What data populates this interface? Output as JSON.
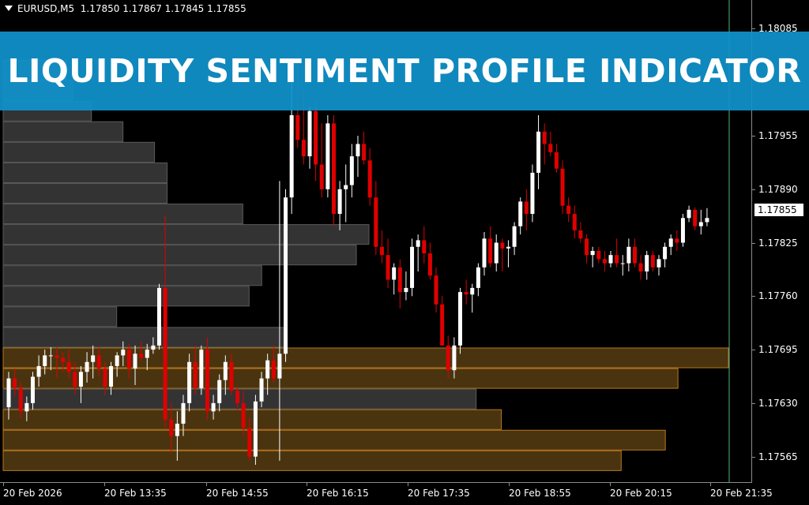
{
  "chart": {
    "symbol_label": "EURUSD,M5",
    "ohlc_label": "1.17850 1.17867 1.17845 1.17855",
    "current_price_label": "1.17855",
    "banner_title": "LIQUIDITY SENTIMENT PROFILE INDICATOR",
    "colors": {
      "background": "#000000",
      "bull_candle": "#ffffff",
      "bear_candle": "#e00000",
      "profile_neutral": "#333333",
      "profile_highlight": "#4a3410",
      "profile_highlight_border": "#b8771e",
      "banner": "#1092cb"
    },
    "price_axis_labels": [
      "1.18085",
      "1.17955",
      "1.17890",
      "1.17825",
      "1.17760",
      "1.17695",
      "1.17630",
      "1.17565"
    ],
    "time_axis_labels": [
      "20 Feb 2026",
      "20 Feb 13:35",
      "20 Feb 14:55",
      "20 Feb 16:15",
      "20 Feb 17:35",
      "20 Feb 18:55",
      "20 Feb 20:15",
      "20 Feb 21:35"
    ]
  },
  "chart_data": {
    "type": "candlestick-with-volume-profile",
    "symbol": "EURUSD",
    "timeframe": "M5",
    "y_range": [
      1.17533,
      1.1812
    ],
    "x_range": [
      "20 Feb 2026 12:00",
      "20 Feb 2026 21:50"
    ],
    "current_price": 1.17855,
    "last_bar_ohlc": {
      "open": 1.1785,
      "high": 1.17867,
      "low": 1.17845,
      "close": 1.17855
    },
    "candles": [
      [
        1.17625,
        1.17668,
        1.1761,
        1.1766
      ],
      [
        1.1766,
        1.17672,
        1.17638,
        1.17648
      ],
      [
        1.17648,
        1.17655,
        1.17612,
        1.1762
      ],
      [
        1.1762,
        1.17638,
        1.17608,
        1.1763
      ],
      [
        1.1763,
        1.17668,
        1.17622,
        1.17662
      ],
      [
        1.17662,
        1.17688,
        1.1765,
        1.17675
      ],
      [
        1.17675,
        1.17695,
        1.17665,
        1.17688
      ],
      [
        1.17688,
        1.17698,
        1.1767,
        1.17688
      ],
      [
        1.17688,
        1.17698,
        1.1766,
        1.17685
      ],
      [
        1.17685,
        1.17692,
        1.17668,
        1.1768
      ],
      [
        1.1768,
        1.17695,
        1.1766,
        1.17668
      ],
      [
        1.17668,
        1.1768,
        1.1764,
        1.1765
      ],
      [
        1.1765,
        1.17675,
        1.1763,
        1.17668
      ],
      [
        1.17668,
        1.17692,
        1.17655,
        1.1768
      ],
      [
        1.1768,
        1.177,
        1.1766,
        1.17688
      ],
      [
        1.17688,
        1.17698,
        1.17662,
        1.17672
      ],
      [
        1.17672,
        1.1768,
        1.1764,
        1.1765
      ],
      [
        1.1765,
        1.1768,
        1.1764,
        1.17675
      ],
      [
        1.17675,
        1.17692,
        1.17662,
        1.17688
      ],
      [
        1.17688,
        1.17705,
        1.17675,
        1.17695
      ],
      [
        1.17695,
        1.17702,
        1.1766,
        1.17672
      ],
      [
        1.17672,
        1.177,
        1.17652,
        1.1769
      ],
      [
        1.1769,
        1.17705,
        1.1768,
        1.17685
      ],
      [
        1.17685,
        1.17702,
        1.1767,
        1.17695
      ],
      [
        1.17695,
        1.1771,
        1.1769,
        1.177
      ],
      [
        1.177,
        1.17775,
        1.17695,
        1.1777
      ],
      [
        1.1777,
        1.17858,
        1.176,
        1.1761
      ],
      [
        1.1761,
        1.1763,
        1.1757,
        1.1759
      ],
      [
        1.1759,
        1.1762,
        1.1756,
        1.17605
      ],
      [
        1.17605,
        1.1764,
        1.1759,
        1.1763
      ],
      [
        1.1763,
        1.1769,
        1.1762,
        1.1768
      ],
      [
        1.1768,
        1.177,
        1.1764,
        1.17648
      ],
      [
        1.17648,
        1.177,
        1.1764,
        1.17695
      ],
      [
        1.17695,
        1.1771,
        1.1761,
        1.1762
      ],
      [
        1.1762,
        1.1764,
        1.1761,
        1.1763
      ],
      [
        1.1763,
        1.17665,
        1.1762,
        1.17658
      ],
      [
        1.17658,
        1.17688,
        1.1764,
        1.1768
      ],
      [
        1.1768,
        1.1769,
        1.1764,
        1.17645
      ],
      [
        1.17645,
        1.1765,
        1.1762,
        1.1763
      ],
      [
        1.1763,
        1.17645,
        1.1759,
        1.176
      ],
      [
        1.176,
        1.17612,
        1.1756,
        1.17565
      ],
      [
        1.17565,
        1.1764,
        1.17555,
        1.17632
      ],
      [
        1.17632,
        1.17668,
        1.17625,
        1.1766
      ],
      [
        1.1766,
        1.1769,
        1.1764,
        1.17682
      ],
      [
        1.17682,
        1.177,
        1.17655,
        1.1766
      ],
      [
        1.1766,
        1.179,
        1.1756,
        1.1769
      ],
      [
        1.1769,
        1.1789,
        1.1768,
        1.1788
      ],
      [
        1.1788,
        1.1803,
        1.1786,
        1.1798
      ],
      [
        1.1798,
        1.1806,
        1.1794,
        1.1795
      ],
      [
        1.1795,
        1.1801,
        1.1792,
        1.1793
      ],
      [
        1.1793,
        1.1799,
        1.17915,
        1.17985
      ],
      [
        1.17985,
        1.18,
        1.179,
        1.1792
      ],
      [
        1.1792,
        1.1797,
        1.1788,
        1.1789
      ],
      [
        1.1789,
        1.1798,
        1.1788,
        1.1797
      ],
      [
        1.1797,
        1.1798,
        1.17845,
        1.1786
      ],
      [
        1.1786,
        1.179,
        1.1784,
        1.1789
      ],
      [
        1.1789,
        1.1792,
        1.1785,
        1.17895
      ],
      [
        1.17895,
        1.17945,
        1.1788,
        1.1793
      ],
      [
        1.1793,
        1.17955,
        1.17905,
        1.17945
      ],
      [
        1.17945,
        1.1796,
        1.1792,
        1.17925
      ],
      [
        1.17925,
        1.1794,
        1.1787,
        1.1788
      ],
      [
        1.1788,
        1.179,
        1.1781,
        1.1782
      ],
      [
        1.1782,
        1.1784,
        1.178,
        1.1781
      ],
      [
        1.1781,
        1.1783,
        1.1777,
        1.1778
      ],
      [
        1.1778,
        1.178,
        1.17762,
        1.17795
      ],
      [
        1.17795,
        1.17805,
        1.17745,
        1.17765
      ],
      [
        1.17765,
        1.1779,
        1.17755,
        1.1777
      ],
      [
        1.1777,
        1.1783,
        1.1776,
        1.1782
      ],
      [
        1.1782,
        1.17835,
        1.1779,
        1.17828
      ],
      [
        1.17828,
        1.17845,
        1.178,
        1.17812
      ],
      [
        1.17812,
        1.17825,
        1.1778,
        1.17785
      ],
      [
        1.17785,
        1.17795,
        1.1774,
        1.1775
      ],
      [
        1.1775,
        1.1776,
        1.177,
        1.177
      ],
      [
        1.177,
        1.17712,
        1.1766,
        1.1767
      ],
      [
        1.1767,
        1.1771,
        1.1766,
        1.177
      ],
      [
        1.177,
        1.1777,
        1.1769,
        1.17765
      ],
      [
        1.17765,
        1.1778,
        1.1775,
        1.17762
      ],
      [
        1.17762,
        1.17775,
        1.1774,
        1.1777
      ],
      [
        1.1777,
        1.178,
        1.1776,
        1.17795
      ],
      [
        1.17795,
        1.17838,
        1.17785,
        1.1783
      ],
      [
        1.1783,
        1.17845,
        1.17795,
        1.178
      ],
      [
        1.178,
        1.17835,
        1.1779,
        1.17825
      ],
      [
        1.17825,
        1.1783,
        1.1779,
        1.17818
      ],
      [
        1.17818,
        1.17828,
        1.17795,
        1.1782
      ],
      [
        1.1782,
        1.1785,
        1.1781,
        1.17845
      ],
      [
        1.17845,
        1.1788,
        1.17835,
        1.17875
      ],
      [
        1.17875,
        1.1789,
        1.1784,
        1.1786
      ],
      [
        1.1786,
        1.1792,
        1.1785,
        1.1791
      ],
      [
        1.1791,
        1.1798,
        1.1789,
        1.1796
      ],
      [
        1.1796,
        1.1797,
        1.1792,
        1.17945
      ],
      [
        1.17945,
        1.1796,
        1.1793,
        1.17935
      ],
      [
        1.17935,
        1.17945,
        1.1791,
        1.17915
      ],
      [
        1.17915,
        1.17925,
        1.1786,
        1.1787
      ],
      [
        1.1787,
        1.1788,
        1.1785,
        1.1786
      ],
      [
        1.1786,
        1.1787,
        1.1783,
        1.1784
      ],
      [
        1.1784,
        1.1785,
        1.17825,
        1.1783
      ],
      [
        1.1783,
        1.17835,
        1.178,
        1.1781
      ],
      [
        1.1781,
        1.1782,
        1.17795,
        1.17815
      ],
      [
        1.17815,
        1.1782,
        1.178,
        1.17805
      ],
      [
        1.17805,
        1.17815,
        1.1779,
        1.178
      ],
      [
        1.178,
        1.17815,
        1.17795,
        1.1781
      ],
      [
        1.1781,
        1.1783,
        1.17795,
        1.178
      ],
      [
        1.178,
        1.1781,
        1.17785,
        1.178
      ],
      [
        1.178,
        1.1783,
        1.1779,
        1.1782
      ],
      [
        1.1782,
        1.1783,
        1.17795,
        1.178
      ],
      [
        1.178,
        1.1781,
        1.1778,
        1.1779
      ],
      [
        1.1779,
        1.17815,
        1.1778,
        1.1781
      ],
      [
        1.1781,
        1.17815,
        1.1779,
        1.17795
      ],
      [
        1.17795,
        1.1781,
        1.17785,
        1.17805
      ],
      [
        1.17805,
        1.17825,
        1.17795,
        1.1782
      ],
      [
        1.1782,
        1.17835,
        1.1781,
        1.1783
      ],
      [
        1.1783,
        1.1784,
        1.17815,
        1.17825
      ],
      [
        1.17825,
        1.1786,
        1.1782,
        1.17855
      ],
      [
        1.17855,
        1.1787,
        1.1785,
        1.17865
      ],
      [
        1.17865,
        1.17868,
        1.1784,
        1.17845
      ],
      [
        1.17845,
        1.17865,
        1.17835,
        1.1785
      ],
      [
        1.1785,
        1.17867,
        1.17845,
        1.17855
      ]
    ],
    "profile": [
      {
        "price": 1.18035,
        "volume": 10,
        "highlight": false
      },
      {
        "price": 1.1801,
        "volume": 11,
        "highlight": false
      },
      {
        "price": 1.17985,
        "volume": 14,
        "highlight": false
      },
      {
        "price": 1.1796,
        "volume": 19,
        "highlight": false
      },
      {
        "price": 1.17935,
        "volume": 24,
        "highlight": false
      },
      {
        "price": 1.1791,
        "volume": 26,
        "highlight": false
      },
      {
        "price": 1.17885,
        "volume": 26,
        "highlight": false
      },
      {
        "price": 1.1786,
        "volume": 38,
        "highlight": false
      },
      {
        "price": 1.17835,
        "volume": 58,
        "highlight": false
      },
      {
        "price": 1.1781,
        "volume": 56,
        "highlight": false
      },
      {
        "price": 1.17785,
        "volume": 41,
        "highlight": false
      },
      {
        "price": 1.1776,
        "volume": 39,
        "highlight": false
      },
      {
        "price": 1.17735,
        "volume": 18,
        "highlight": false
      },
      {
        "price": 1.1771,
        "volume": 45,
        "highlight": false
      },
      {
        "price": 1.17685,
        "volume": 115,
        "highlight": true
      },
      {
        "price": 1.1766,
        "volume": 107,
        "highlight": true
      },
      {
        "price": 1.17635,
        "volume": 75,
        "highlight": false
      },
      {
        "price": 1.1761,
        "volume": 79,
        "highlight": true
      },
      {
        "price": 1.17585,
        "volume": 105,
        "highlight": true
      },
      {
        "price": 1.1756,
        "volume": 98,
        "highlight": true
      }
    ],
    "profile_max_volume": 115
  }
}
